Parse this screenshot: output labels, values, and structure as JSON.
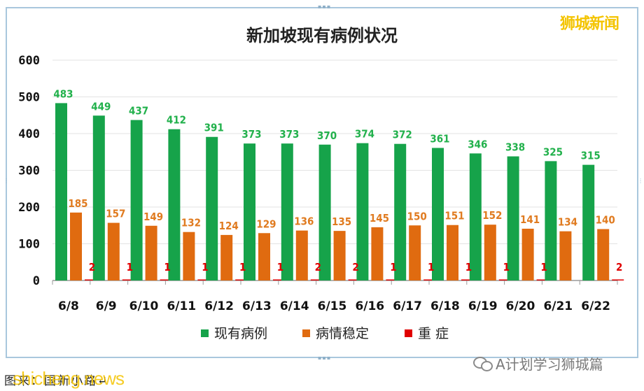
{
  "chart_data": {
    "type": "bar",
    "title": "新加坡现有病例状况",
    "categories": [
      "6/8",
      "6/9",
      "6/10",
      "6/11",
      "6/12",
      "6/13",
      "6/14",
      "6/15",
      "6/16",
      "6/17",
      "6/18",
      "6/19",
      "6/20",
      "6/21",
      "6/22"
    ],
    "series": [
      {
        "name": "现有病例",
        "color": "#16a34a",
        "label_color": "#22b14c",
        "values": [
          483,
          449,
          437,
          412,
          391,
          373,
          373,
          370,
          374,
          372,
          361,
          346,
          338,
          325,
          315
        ]
      },
      {
        "name": "病情稳定",
        "color": "#e06b10",
        "label_color": "#e07b20",
        "values": [
          185,
          157,
          149,
          132,
          124,
          129,
          136,
          135,
          145,
          150,
          151,
          152,
          141,
          134,
          140
        ]
      },
      {
        "name": "重 症",
        "color": "#e00000",
        "label_color": "#e00000",
        "values": [
          2,
          1,
          1,
          1,
          1,
          1,
          2,
          2,
          1,
          1,
          1,
          1,
          1,
          0,
          2
        ]
      }
    ],
    "data_labels": [
      [
        "483",
        "449",
        "437",
        "412",
        "391",
        "373",
        "373",
        "370",
        "374",
        "372",
        "361",
        "346",
        "338",
        "325",
        "315"
      ],
      [
        "185",
        "157",
        "149",
        "132",
        "124",
        "129",
        "136",
        "135",
        "145",
        "150",
        "151",
        "152",
        "141",
        "134",
        "140"
      ],
      [
        "2",
        "1",
        "1",
        "1",
        "1",
        "1",
        "2",
        "2",
        "1",
        "1",
        "1",
        "1",
        "1",
        "",
        "2"
      ]
    ],
    "yticks": [
      "0",
      "100",
      "200",
      "300",
      "400",
      "500",
      "600"
    ],
    "ylim": [
      0,
      600
    ],
    "grid": true,
    "legend": "bottom"
  },
  "watermark_top": "狮城新闻",
  "caption": "图来：国新小路↵",
  "watermark_bottom": "shicheng.news",
  "wechat_tag": "A计划学习狮城篇"
}
